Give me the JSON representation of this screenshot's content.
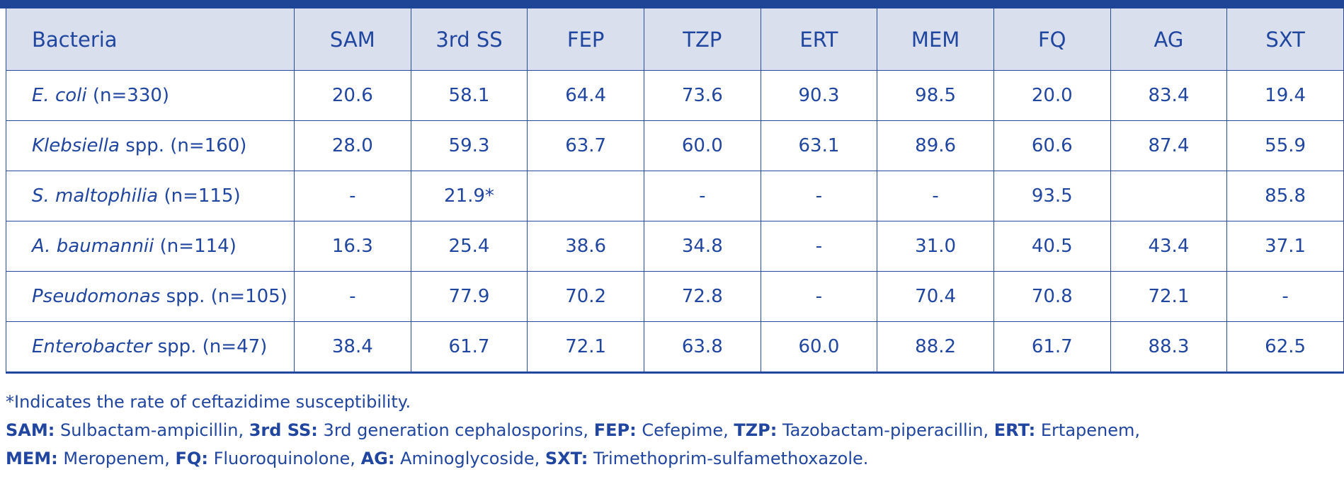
{
  "table": {
    "header": [
      "Bacteria",
      "SAM",
      "3rd SS",
      "FEP",
      "TZP",
      "ERT",
      "MEM",
      "FQ",
      "AG",
      "SXT"
    ],
    "rows": [
      {
        "name": {
          "italic": "E. coli",
          "rest": "(n=330)"
        },
        "cells": [
          "20.6",
          "58.1",
          "64.4",
          "73.6",
          "90.3",
          "98.5",
          "20.0",
          "83.4",
          "19.4"
        ]
      },
      {
        "name": {
          "italic": "Klebsiella",
          "rest": "spp. (n=160)"
        },
        "cells": [
          "28.0",
          "59.3",
          "63.7",
          "60.0",
          "63.1",
          "89.6",
          "60.6",
          "87.4",
          "55.9"
        ]
      },
      {
        "name": {
          "italic": "S. maltophilia",
          "rest": "(n=115)"
        },
        "cells": [
          "-",
          "21.9*",
          null,
          "-",
          "-",
          "-",
          "93.5",
          null,
          "85.8"
        ]
      },
      {
        "name": {
          "italic": "A. baumannii",
          "rest": "(n=114)"
        },
        "cells": [
          "16.3",
          "25.4",
          "38.6",
          "34.8",
          "-",
          "31.0",
          "40.5",
          "43.4",
          "37.1"
        ]
      },
      {
        "name": {
          "italic": "Pseudomonas",
          "rest": "spp. (n=105)"
        },
        "cells": [
          "-",
          "77.9",
          "70.2",
          "72.8",
          "-",
          "70.4",
          "70.8",
          "72.1",
          "-"
        ]
      },
      {
        "name": {
          "italic": "Enterobacter",
          "rest": "spp. (n=47)"
        },
        "cells": [
          "38.4",
          "61.7",
          "72.1",
          "63.8",
          "60.0",
          "88.2",
          "61.7",
          "88.3",
          "62.5"
        ]
      }
    ]
  },
  "footnote": "*Indicates the rate of ceftazidime susceptibility.",
  "abbreviations": [
    [
      {
        "term": "SAM:",
        "definition": "Sulbactam-ampicillin,"
      },
      {
        "term": "3rd SS:",
        "definition": "3rd generation cephalosporins,"
      },
      {
        "term": "FEP:",
        "definition": "Cefepime,"
      },
      {
        "term": "TZP:",
        "definition": "Tazobactam-piperacillin,"
      },
      {
        "term": "ERT:",
        "definition": "Ertapenem,"
      }
    ],
    [
      {
        "term": "MEM:",
        "definition": "Meropenem,"
      },
      {
        "term": "FQ:",
        "definition": "Fluoroquinolone,"
      },
      {
        "term": "AG:",
        "definition": "Aminoglycoside,"
      },
      {
        "term": "SXT:",
        "definition": "Trimethoprim-sulfamethoxazole."
      }
    ]
  ]
}
